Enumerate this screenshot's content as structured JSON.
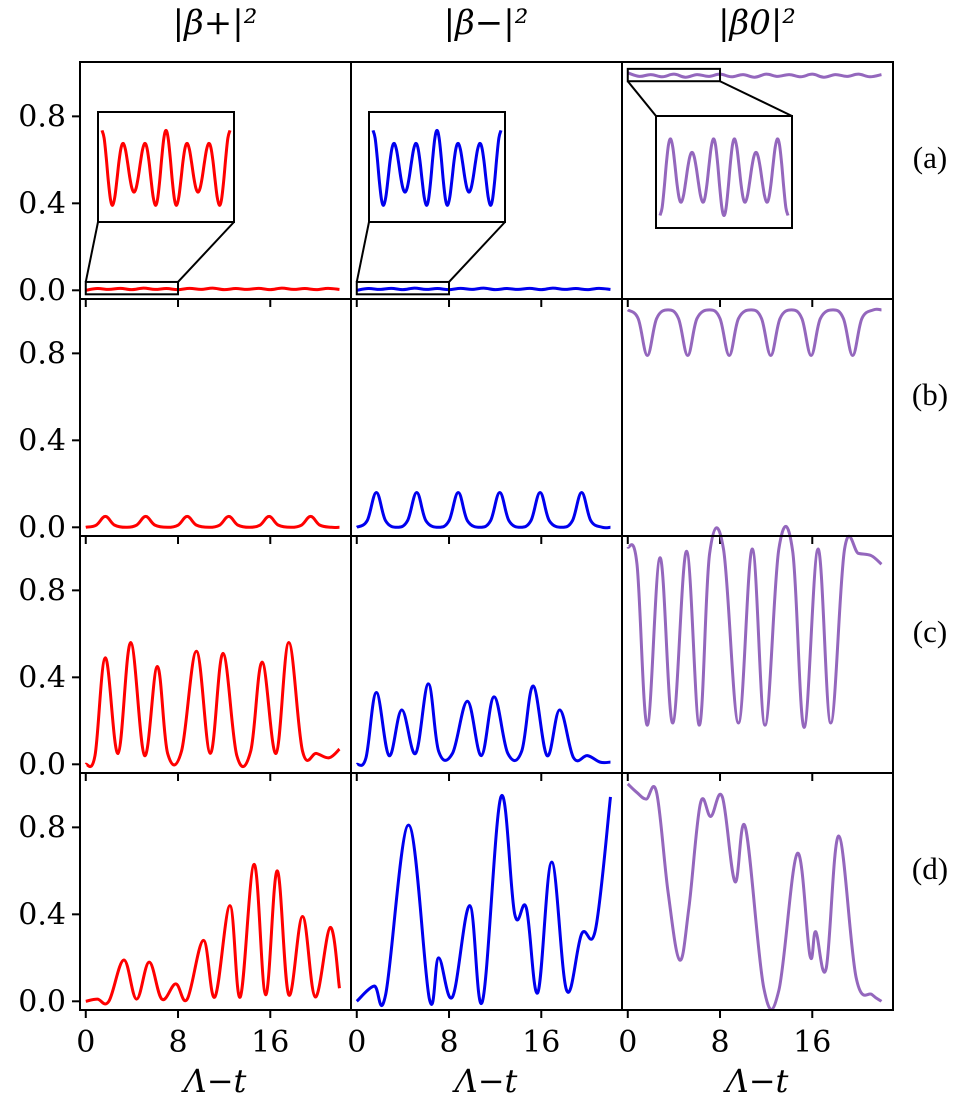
{
  "chart_data": {
    "type": "line",
    "column_titles": [
      "|β+|²",
      "|β−|²",
      "|β0|²"
    ],
    "row_labels": [
      "(a)",
      "(b)",
      "(c)",
      "(d)"
    ],
    "xlabel": "Λ−t",
    "xlim": [
      -0.5,
      23
    ],
    "ylim": [
      -0.04,
      1.05
    ],
    "xticks": [
      0,
      8,
      16
    ],
    "xtick_labels": [
      "0",
      "8",
      "16"
    ],
    "yticks": [
      0.0,
      0.4,
      0.8
    ],
    "ytick_labels": [
      "0.0",
      "0.4",
      "0.8"
    ],
    "series_colors": [
      "#ff0000",
      "#0000ee",
      "#9467bd"
    ],
    "grid": false,
    "panels": [
      [
        {
          "row": "(a)",
          "column": "|β+|²",
          "x": [
            0,
            1,
            2,
            3,
            4,
            5,
            6,
            7,
            8,
            9,
            10,
            11,
            12,
            13,
            14,
            15,
            16,
            17,
            18,
            19,
            20,
            21,
            22
          ],
          "y": [
            0.0,
            0.008,
            0.004,
            0.009,
            0.003,
            0.01,
            0.004,
            0.008,
            0.003,
            0.009,
            0.004,
            0.01,
            0.003,
            0.008,
            0.004,
            0.009,
            0.003,
            0.01,
            0.004,
            0.008,
            0.003,
            0.009,
            0.004
          ],
          "inset": {
            "x_range": [
              0,
              8
            ],
            "y_range": [
              0,
              0.02
            ]
          }
        },
        {
          "row": "(a)",
          "column": "|β−|²",
          "x": [
            0,
            1,
            2,
            3,
            4,
            5,
            6,
            7,
            8,
            9,
            10,
            11,
            12,
            13,
            14,
            15,
            16,
            17,
            18,
            19,
            20,
            21,
            22
          ],
          "y": [
            0.0,
            0.008,
            0.004,
            0.009,
            0.003,
            0.01,
            0.004,
            0.008,
            0.003,
            0.009,
            0.004,
            0.01,
            0.003,
            0.008,
            0.004,
            0.009,
            0.003,
            0.01,
            0.004,
            0.008,
            0.003,
            0.009,
            0.004
          ],
          "inset": {
            "x_range": [
              0,
              8
            ],
            "y_range": [
              0,
              0.02
            ]
          }
        },
        {
          "row": "(a)",
          "column": "|β0|²",
          "x": [
            0,
            1,
            2,
            3,
            4,
            5,
            6,
            7,
            8,
            9,
            10,
            11,
            12,
            13,
            14,
            15,
            16,
            17,
            18,
            19,
            20,
            21,
            22
          ],
          "y": [
            1.0,
            0.984,
            0.992,
            0.982,
            0.994,
            0.98,
            0.992,
            0.984,
            0.994,
            0.982,
            0.992,
            0.98,
            0.994,
            0.984,
            0.992,
            0.982,
            0.994,
            0.98,
            0.992,
            0.984,
            0.994,
            0.982,
            0.992
          ],
          "inset": {
            "x_range": [
              0,
              8
            ],
            "y_range": [
              0.98,
              1.0
            ]
          }
        }
      ],
      [
        {
          "row": "(b)",
          "column": "|β+|²",
          "x": [
            0,
            0.9,
            1.7,
            2.5,
            3.5,
            4.4,
            5.2,
            6.0,
            7.1,
            8.0,
            8.8,
            9.6,
            10.7,
            11.6,
            12.4,
            13.2,
            14.2,
            15.1,
            15.9,
            16.7,
            17.8,
            18.7,
            19.5,
            20.3,
            21.3,
            22
          ],
          "y": [
            0.0,
            0.01,
            0.05,
            0.01,
            0.0,
            0.01,
            0.05,
            0.01,
            0.0,
            0.01,
            0.05,
            0.01,
            0.0,
            0.01,
            0.05,
            0.01,
            0.0,
            0.01,
            0.05,
            0.01,
            0.0,
            0.01,
            0.05,
            0.01,
            0.0,
            0.0
          ]
        },
        {
          "row": "(b)",
          "column": "|β−|²",
          "x": [
            0,
            0.9,
            1.7,
            2.5,
            3.5,
            4.4,
            5.2,
            6.0,
            7.1,
            8.0,
            8.8,
            9.6,
            10.7,
            11.6,
            12.4,
            13.2,
            14.2,
            15.1,
            15.9,
            16.7,
            17.8,
            18.7,
            19.5,
            20.3,
            21.3,
            22
          ],
          "y": [
            0.0,
            0.03,
            0.16,
            0.03,
            0.0,
            0.03,
            0.16,
            0.03,
            0.0,
            0.03,
            0.16,
            0.03,
            0.0,
            0.03,
            0.16,
            0.03,
            0.0,
            0.03,
            0.16,
            0.03,
            0.0,
            0.03,
            0.16,
            0.03,
            0.0,
            0.0
          ]
        },
        {
          "row": "(b)",
          "column": "|β0|²",
          "x": [
            0,
            0.9,
            1.7,
            2.5,
            3.5,
            4.4,
            5.2,
            6.0,
            7.1,
            8.0,
            8.8,
            9.6,
            10.7,
            11.6,
            12.4,
            13.2,
            14.2,
            15.1,
            15.9,
            16.7,
            17.8,
            18.7,
            19.5,
            20.3,
            21.3,
            22
          ],
          "y": [
            1.0,
            0.96,
            0.79,
            0.96,
            1.0,
            0.96,
            0.79,
            0.96,
            1.0,
            0.96,
            0.79,
            0.96,
            1.0,
            0.96,
            0.79,
            0.96,
            1.0,
            0.96,
            0.79,
            0.96,
            1.0,
            0.96,
            0.79,
            0.96,
            1.0,
            1.0
          ]
        }
      ],
      [
        {
          "row": "(c)",
          "column": "|β+|²",
          "x": [
            0,
            0.8,
            1.7,
            2.8,
            3.9,
            5.1,
            6.2,
            7.1,
            8.3,
            9.6,
            10.8,
            11.9,
            13.1,
            14.3,
            15.3,
            16.5,
            17.6,
            18.8,
            20.0,
            21.1,
            22
          ],
          "y": [
            0.0,
            0.04,
            0.49,
            0.05,
            0.56,
            0.04,
            0.45,
            0.05,
            0.06,
            0.52,
            0.05,
            0.51,
            0.04,
            0.06,
            0.47,
            0.05,
            0.56,
            0.06,
            0.05,
            0.03,
            0.07
          ]
        },
        {
          "row": "(c)",
          "column": "|β−|²",
          "x": [
            0,
            0.8,
            1.7,
            2.8,
            3.9,
            5.1,
            6.2,
            7.1,
            8.3,
            9.6,
            10.8,
            11.9,
            13.1,
            14.3,
            15.3,
            16.5,
            17.6,
            18.8,
            20.0,
            21.1,
            22
          ],
          "y": [
            0.0,
            0.03,
            0.33,
            0.04,
            0.25,
            0.05,
            0.37,
            0.06,
            0.05,
            0.29,
            0.04,
            0.31,
            0.05,
            0.06,
            0.36,
            0.04,
            0.25,
            0.03,
            0.04,
            0.01,
            0.01
          ]
        },
        {
          "row": "(c)",
          "column": "|β0|²",
          "x": [
            0,
            0.8,
            1.7,
            2.8,
            3.9,
            5.1,
            6.2,
            7.1,
            8.3,
            9.6,
            10.8,
            11.9,
            13.1,
            14.3,
            15.3,
            16.5,
            17.6,
            18.8,
            20.0,
            21.1,
            22
          ],
          "y": [
            1.0,
            0.92,
            0.18,
            0.95,
            0.19,
            0.98,
            0.18,
            0.97,
            0.99,
            0.19,
            0.99,
            0.18,
            0.99,
            0.98,
            0.17,
            0.99,
            0.19,
            0.99,
            0.97,
            0.96,
            0.92
          ]
        }
      ],
      [
        {
          "row": "(d)",
          "column": "|β+|²",
          "x": [
            0,
            1,
            2,
            3.3,
            4.4,
            5.5,
            6.6,
            7.8,
            8.8,
            10.2,
            11.2,
            12.5,
            13.4,
            14.6,
            15.6,
            16.6,
            17.6,
            18.8,
            19.9,
            21.2,
            22
          ],
          "y": [
            0.0,
            0.01,
            0.0,
            0.19,
            0.01,
            0.18,
            0.01,
            0.08,
            0.01,
            0.28,
            0.02,
            0.44,
            0.02,
            0.63,
            0.03,
            0.6,
            0.03,
            0.39,
            0.02,
            0.34,
            0.06
          ]
        },
        {
          "row": "(d)",
          "column": "|β−|²",
          "x": [
            0,
            1.5,
            2.5,
            4.5,
            6.3,
            7.1,
            8.3,
            9.8,
            10.9,
            12.5,
            13.7,
            14.7,
            15.7,
            16.9,
            18.2,
            19.5,
            20.7,
            22
          ],
          "y": [
            0.0,
            0.07,
            0.03,
            0.81,
            0.01,
            0.2,
            0.02,
            0.44,
            0.0,
            0.94,
            0.4,
            0.43,
            0.04,
            0.64,
            0.05,
            0.31,
            0.33,
            0.94
          ]
        },
        {
          "row": "(d)",
          "column": "|β0|²",
          "x": [
            0,
            0.8,
            1.6,
            2.5,
            3.5,
            4.5,
            5.3,
            6.3,
            7.2,
            8.2,
            9.3,
            10.2,
            11.8,
            13.1,
            14.7,
            15.8,
            16.3,
            17.2,
            18.3,
            19.8,
            21.2,
            22
          ],
          "y": [
            1.0,
            0.96,
            0.93,
            0.96,
            0.5,
            0.19,
            0.43,
            0.91,
            0.85,
            0.94,
            0.55,
            0.8,
            0.06,
            0.05,
            0.68,
            0.21,
            0.32,
            0.15,
            0.76,
            0.11,
            0.03,
            0.0
          ]
        }
      ]
    ]
  }
}
